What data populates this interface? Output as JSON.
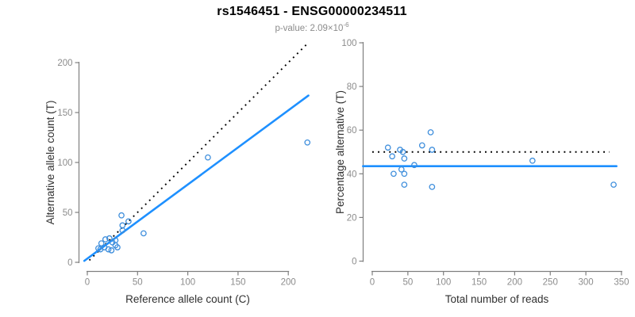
{
  "header": {
    "title": "rs1546451 - ENSG00000234511",
    "subtitle_prefix": "p-value: 2.09×10",
    "subtitle_exponent": "-6"
  },
  "colors": {
    "point": "#3E8EDC",
    "fit_line": "#1E90FF",
    "reference_line": "#000000",
    "axis": "#7f7f7f",
    "tick_label": "#8c8c8c",
    "axis_title": "#303030",
    "title": "#000000",
    "subtitle": "#8c8c8c"
  },
  "chart_data": [
    {
      "type": "scatter",
      "panel": "left",
      "xlabel": "Reference allele count (C)",
      "ylabel": "Alternative allele count (T)",
      "xticks": [
        0,
        50,
        100,
        150,
        200
      ],
      "yticks": [
        0,
        50,
        100,
        150,
        200
      ],
      "xlim": [
        0,
        220
      ],
      "ylim": [
        0,
        220
      ],
      "grid": false,
      "legend": false,
      "points": [
        [
          11,
          14
        ],
        [
          13,
          13
        ],
        [
          14,
          19
        ],
        [
          17,
          15
        ],
        [
          18,
          23
        ],
        [
          21,
          13
        ],
        [
          22,
          24
        ],
        [
          24,
          12
        ],
        [
          25,
          20
        ],
        [
          28,
          17
        ],
        [
          28,
          22
        ],
        [
          30,
          15
        ],
        [
          34,
          47
        ],
        [
          35,
          37
        ],
        [
          35,
          32
        ],
        [
          41,
          41
        ],
        [
          56,
          29
        ],
        [
          120,
          105
        ],
        [
          219,
          120
        ]
      ],
      "lines": [
        {
          "name": "identity-line",
          "style": "dotted",
          "color": "#000000",
          "from": [
            2,
            2
          ],
          "to": [
            220,
            220
          ]
        },
        {
          "name": "fit-line",
          "style": "solid",
          "color": "#1E90FF",
          "from": [
            -3,
            1.5
          ],
          "to": [
            220,
            167
          ]
        }
      ]
    },
    {
      "type": "scatter",
      "panel": "right",
      "xlabel": "Total number of reads",
      "ylabel": "Percentage alternative (T)",
      "xticks": [
        0,
        50,
        100,
        150,
        200,
        250,
        300,
        350
      ],
      "yticks": [
        0,
        20,
        40,
        60,
        80,
        100
      ],
      "xlim": [
        0,
        350
      ],
      "ylim": [
        0,
        100
      ],
      "grid": false,
      "legend": false,
      "points": [
        [
          22,
          52
        ],
        [
          28,
          48
        ],
        [
          30,
          40
        ],
        [
          39,
          51
        ],
        [
          41,
          42
        ],
        [
          43,
          50
        ],
        [
          45,
          47
        ],
        [
          45,
          40
        ],
        [
          45,
          35
        ],
        [
          59,
          44
        ],
        [
          70,
          53
        ],
        [
          82,
          59
        ],
        [
          84,
          51
        ],
        [
          84,
          34
        ],
        [
          225,
          46
        ],
        [
          339,
          35
        ]
      ],
      "lines": [
        {
          "name": "fifty-percent-line",
          "style": "dotted",
          "color": "#000000",
          "from": [
            0,
            50
          ],
          "to": [
            333,
            50
          ]
        },
        {
          "name": "mean-percentage-line",
          "style": "solid",
          "color": "#1E90FF",
          "from": [
            -13,
            43.5
          ],
          "to": [
            343,
            43.5
          ]
        }
      ]
    }
  ]
}
